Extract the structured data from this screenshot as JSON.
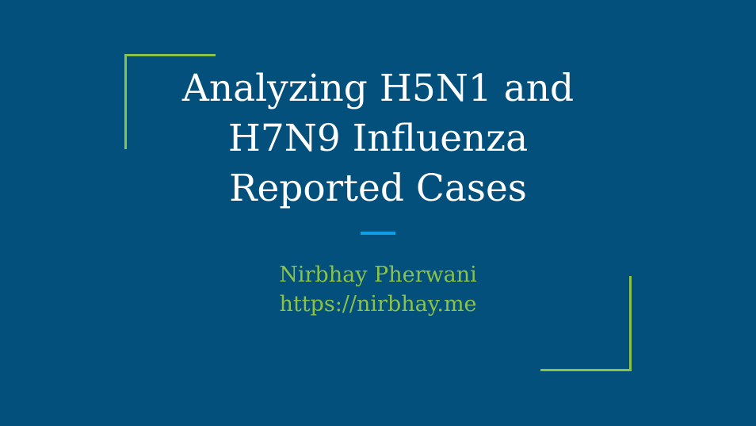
{
  "slide": {
    "title_lines": [
      "Analyzing H5N1 and",
      "H7N9 Influenza",
      "Reported Cases"
    ],
    "author": "Nirbhay Pherwani",
    "url": "https://nirbhay.me"
  },
  "colors": {
    "background": "#02507b",
    "title_text": "#ffffff",
    "accent_green": "#8bc34a",
    "divider_blue": "#0e9ee6"
  }
}
